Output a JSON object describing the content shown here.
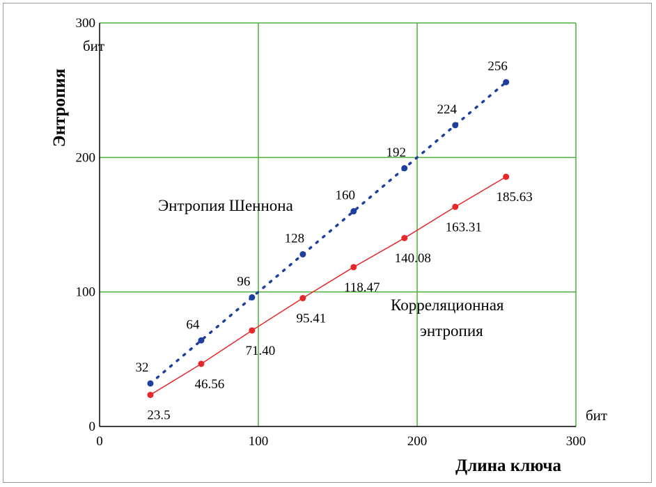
{
  "chart_data": {
    "type": "line",
    "xlabel": "Длина ключа",
    "ylabel": "Энтропия",
    "x_unit": "бит",
    "y_unit": "бит",
    "xlim": [
      0,
      300
    ],
    "ylim": [
      0,
      300
    ],
    "x_ticks": [
      0,
      100,
      200,
      300
    ],
    "y_ticks": [
      0,
      100,
      200,
      300
    ],
    "grid": true,
    "series": [
      {
        "name": "Энтропия Шеннона",
        "style": "dotted",
        "color": "#1f3f9f",
        "x": [
          32,
          64,
          96,
          128,
          160,
          192,
          224,
          256
        ],
        "y": [
          32,
          64,
          96,
          128,
          160,
          192,
          224,
          256
        ],
        "labels": [
          "32",
          "64",
          "96",
          "128",
          "160",
          "192",
          "224",
          "256"
        ]
      },
      {
        "name": "Корреляционная энтропия",
        "name_lines": [
          "Корреляционная",
          "энтропия"
        ],
        "style": "solid",
        "color": "#e8272a",
        "x": [
          32,
          64,
          96,
          128,
          160,
          192,
          224,
          256
        ],
        "y": [
          23.5,
          46.56,
          71.4,
          95.41,
          118.47,
          140.08,
          163.31,
          185.63
        ],
        "labels": [
          "23.5",
          "46.56",
          "71.40",
          "95.41",
          "118.47",
          "140.08",
          "163.31",
          "185.63"
        ]
      }
    ],
    "grid_color": "#4caf3a"
  }
}
